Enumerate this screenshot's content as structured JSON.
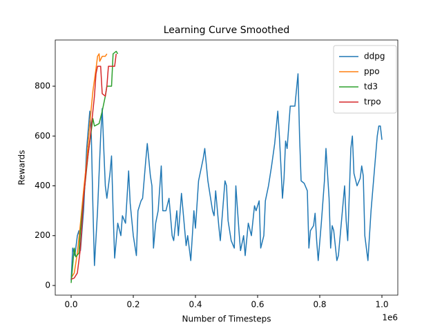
{
  "chart_data": {
    "type": "line",
    "title": "Learning Curve Smoothed",
    "x_label": "Number of Timesteps",
    "y_label": "Rewards",
    "x_offset_label": "1e6",
    "xlim": [
      -51100,
      1051100
    ],
    "ylim": [
      -38.8,
      985.5
    ],
    "xticks": [
      {
        "value": 0,
        "label": "0.0"
      },
      {
        "value": 200000,
        "label": "0.2"
      },
      {
        "value": 400000,
        "label": "0.4"
      },
      {
        "value": 600000,
        "label": "0.6"
      },
      {
        "value": 800000,
        "label": "0.8"
      },
      {
        "value": 1000000,
        "label": "1.0"
      }
    ],
    "yticks": [
      0,
      200,
      400,
      600,
      800
    ],
    "grid": false,
    "legend": "upper right",
    "series": [
      {
        "name": "ddpg",
        "color": "#1f77b4",
        "x": [
          0,
          5000,
          12000,
          20000,
          25000,
          30000,
          40000,
          50000,
          60000,
          65000,
          70000,
          75000,
          85000,
          95000,
          100000,
          105000,
          110000,
          115000,
          125000,
          130000,
          135000,
          140000,
          150000,
          160000,
          165000,
          175000,
          185000,
          190000,
          200000,
          210000,
          215000,
          225000,
          230000,
          240000,
          245000,
          255000,
          260000,
          265000,
          272000,
          280000,
          290000,
          295000,
          305000,
          315000,
          325000,
          330000,
          340000,
          345000,
          355000,
          360000,
          370000,
          375000,
          385000,
          395000,
          400000,
          410000,
          420000,
          425000,
          430000,
          440000,
          445000,
          455000,
          460000,
          465000,
          475000,
          480000,
          495000,
          500000,
          505000,
          515000,
          525000,
          530000,
          540000,
          545000,
          555000,
          560000,
          570000,
          580000,
          590000,
          595000,
          605000,
          610000,
          620000,
          625000,
          635000,
          645000,
          655000,
          665000,
          670000,
          675000,
          680000,
          685000,
          690000,
          695000,
          705000,
          715000,
          720000,
          730000,
          735000,
          740000,
          750000,
          760000,
          765000,
          770000,
          780000,
          785000,
          790000,
          795000,
          805000,
          815000,
          820000,
          830000,
          835000,
          840000,
          845000,
          855000,
          860000,
          870000,
          880000,
          885000,
          890000,
          900000,
          905000,
          910000,
          920000,
          930000,
          935000,
          940000,
          945000,
          955000,
          965000,
          975000,
          985000,
          990000,
          995000,
          1000000
        ],
        "values": [
          20,
          150,
          120,
          200,
          220,
          140,
          300,
          550,
          700,
          600,
          320,
          80,
          300,
          600,
          710,
          550,
          400,
          350,
          450,
          520,
          300,
          110,
          250,
          200,
          280,
          250,
          460,
          330,
          200,
          120,
          300,
          340,
          350,
          500,
          570,
          440,
          400,
          150,
          250,
          300,
          480,
          300,
          300,
          350,
          200,
          180,
          300,
          200,
          370,
          300,
          160,
          200,
          100,
          300,
          230,
          420,
          480,
          510,
          550,
          420,
          380,
          300,
          280,
          380,
          240,
          180,
          420,
          400,
          260,
          180,
          150,
          400,
          220,
          140,
          200,
          120,
          250,
          200,
          320,
          300,
          340,
          150,
          200,
          340,
          400,
          480,
          570,
          700,
          600,
          480,
          350,
          430,
          580,
          550,
          720,
          720,
          720,
          850,
          600,
          420,
          410,
          380,
          150,
          220,
          240,
          290,
          180,
          100,
          250,
          420,
          550,
          350,
          150,
          240,
          220,
          100,
          120,
          260,
          400,
          260,
          180,
          550,
          600,
          450,
          400,
          430,
          480,
          440,
          200,
          100,
          300,
          450,
          600,
          640,
          640,
          585
        ]
      },
      {
        "name": "ppo",
        "color": "#ff7f0e",
        "x": [
          0,
          10000,
          20000,
          30000,
          40000,
          50000,
          60000,
          70000,
          80000,
          85000,
          90000,
          92000,
          100000,
          110000,
          115000
        ],
        "values": [
          30,
          50,
          130,
          250,
          380,
          500,
          650,
          780,
          870,
          920,
          930,
          900,
          920,
          920,
          930
        ]
      },
      {
        "name": "td3",
        "color": "#2ca02c",
        "x": [
          0,
          10000,
          15000,
          25000,
          30000,
          40000,
          55000,
          70000,
          75000,
          90000,
          100000,
          110000,
          115000,
          130000,
          135000,
          145000,
          150000
        ],
        "values": [
          10,
          150,
          115,
          130,
          220,
          350,
          530,
          670,
          640,
          650,
          700,
          760,
          800,
          800,
          930,
          940,
          930
        ]
      },
      {
        "name": "trpo",
        "color": "#d62728",
        "x": [
          0,
          10000,
          20000,
          25000,
          30000,
          40000,
          50000,
          60000,
          70000,
          75000,
          80000,
          85000,
          95000,
          100000,
          110000,
          115000,
          120000,
          140000,
          145000
        ],
        "values": [
          25,
          30,
          50,
          100,
          150,
          350,
          480,
          580,
          700,
          760,
          850,
          880,
          880,
          770,
          760,
          800,
          880,
          880,
          930
        ]
      }
    ]
  }
}
